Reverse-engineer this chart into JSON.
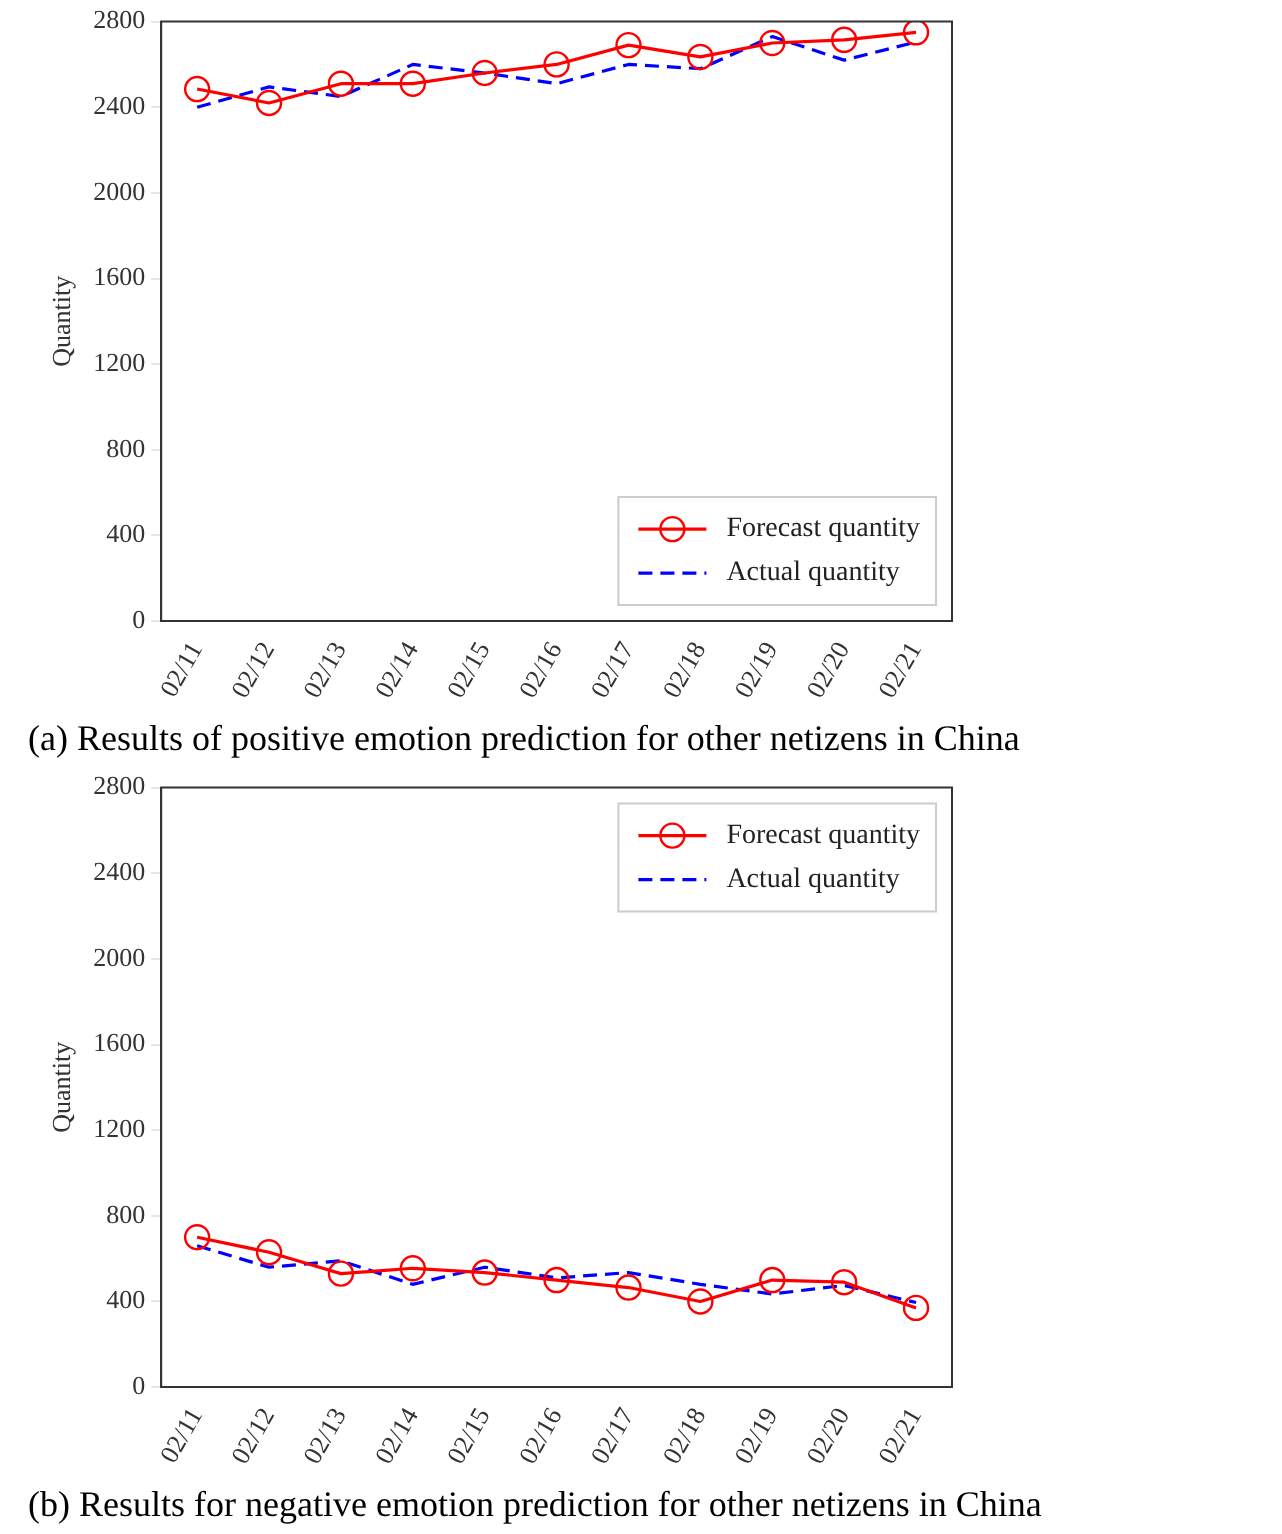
{
  "chart_data": [
    {
      "type": "line",
      "title": "(a) Results of positive emotion prediction for other netizens in China",
      "ylabel": "Quantity",
      "categories": [
        "02/11",
        "02/12",
        "02/13",
        "02/14",
        "02/15",
        "02/16",
        "02/17",
        "02/18",
        "02/19",
        "02/20",
        "02/21"
      ],
      "ylim": [
        0,
        2800
      ],
      "yticks": [
        0,
        400,
        800,
        1200,
        1600,
        2000,
        2400,
        2800
      ],
      "grid": false,
      "legend": "bottom right",
      "series": [
        {
          "name": "Forecast quantity",
          "color": "#ff0000",
          "marker": "circle",
          "line_style": "solid",
          "values": [
            2485,
            2420,
            2510,
            2510,
            2560,
            2600,
            2690,
            2635,
            2700,
            2715,
            2750
          ]
        },
        {
          "name": "Actual quantity",
          "color": "#0000ff",
          "marker": "none",
          "line_style": "dashed",
          "values": [
            2400,
            2495,
            2450,
            2600,
            2560,
            2510,
            2600,
            2580,
            2730,
            2620,
            2705
          ]
        }
      ]
    },
    {
      "type": "line",
      "title": "(b) Results for negative emotion prediction for other netizens in China",
      "ylabel": "Quantity",
      "categories": [
        "02/11",
        "02/12",
        "02/13",
        "02/14",
        "02/15",
        "02/16",
        "02/17",
        "02/18",
        "02/19",
        "02/20",
        "02/21"
      ],
      "ylim": [
        0,
        2800
      ],
      "yticks": [
        0,
        400,
        800,
        1200,
        1600,
        2000,
        2400,
        2800
      ],
      "grid": false,
      "legend": "top right",
      "series": [
        {
          "name": "Forecast quantity",
          "color": "#ff0000",
          "marker": "circle",
          "line_style": "solid",
          "values": [
            700,
            630,
            530,
            555,
            535,
            500,
            465,
            400,
            500,
            490,
            370
          ]
        },
        {
          "name": "Actual quantity",
          "color": "#0000ff",
          "marker": "none",
          "line_style": "dashed",
          "values": [
            660,
            560,
            590,
            480,
            560,
            510,
            535,
            480,
            435,
            475,
            395
          ]
        }
      ]
    }
  ]
}
